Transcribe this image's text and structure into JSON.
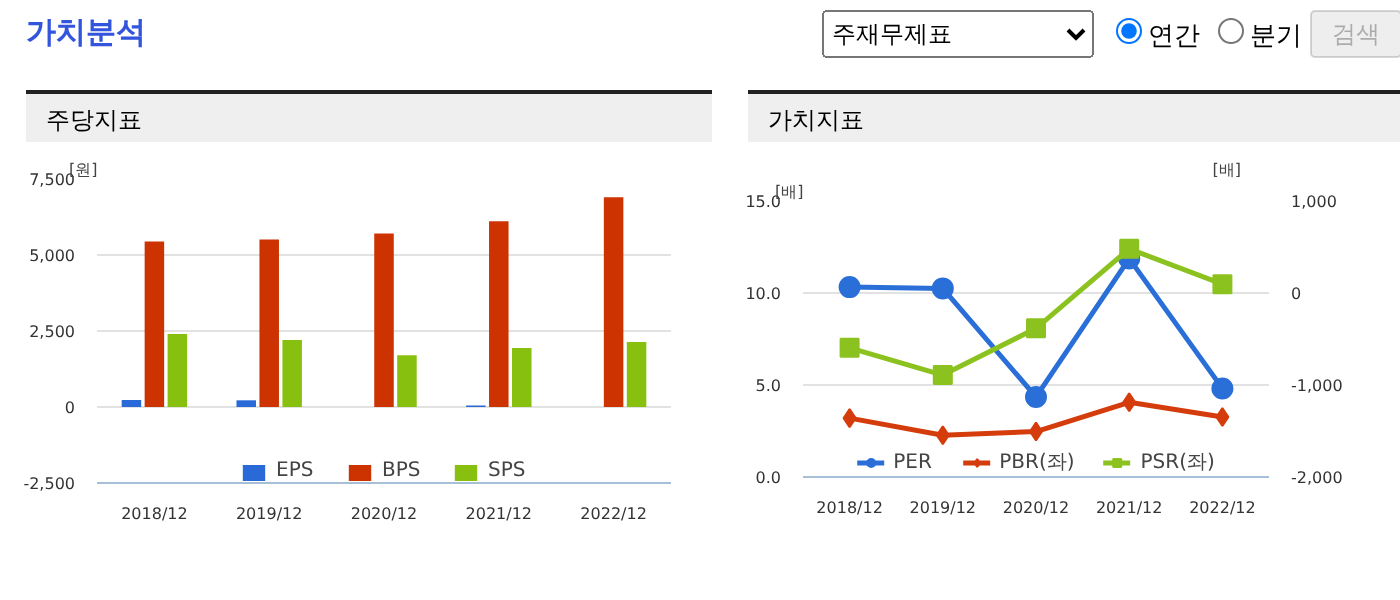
{
  "chart_data": [
    {
      "type": "other",
      "title": "가치분석",
      "annotations": [
        "주재무제표",
        "연간",
        "분기",
        "검색"
      ]
    },
    {
      "type": "bar",
      "title": "주당지표",
      "ylabel": "[원]",
      "categories": [
        "2018/12",
        "2019/12",
        "2020/12",
        "2021/12",
        "2022/12"
      ],
      "series": [
        {
          "name": "EPS",
          "color": "#2a6ad8",
          "values": [
            230,
            220,
            0,
            50,
            0
          ]
        },
        {
          "name": "BPS",
          "color": "#cc3300",
          "values": [
            5440,
            5510,
            5710,
            6110,
            6900
          ]
        },
        {
          "name": "SPS",
          "color": "#88c010",
          "values": [
            2400,
            2200,
            1700,
            1940,
            2140
          ]
        }
      ],
      "ylim": [
        -2500,
        7500
      ],
      "yticks": [
        {
          "value": -2500,
          "label": "-2,500"
        },
        {
          "value": 0,
          "label": "0"
        },
        {
          "value": 2500,
          "label": "2,500"
        },
        {
          "value": 5000,
          "label": "5,000"
        },
        {
          "value": 7500,
          "label": "7,500"
        }
      ],
      "grid": "y",
      "legend": "bottom"
    },
    {
      "type": "line",
      "title": "가치지표",
      "ylabel": "[배]",
      "y2label": "[배]",
      "categories": [
        "2018/12",
        "2019/12",
        "2020/12",
        "2021/12",
        "2022/12"
      ],
      "series": [
        {
          "name": "PER",
          "color": "#2a6fd8",
          "marker": "circle",
          "axis": "y2",
          "values": [
            64,
            50,
            -1130,
            374,
            -1037
          ]
        },
        {
          "name": "PBR(좌)",
          "color": "#d53c0c",
          "marker": "diamond",
          "values": [
            3.2,
            2.27,
            2.47,
            4.06,
            3.26
          ]
        },
        {
          "name": "PSR(좌)",
          "color": "#8cc21f",
          "marker": "square",
          "values": [
            7.02,
            5.54,
            8.08,
            12.4,
            10.48
          ]
        }
      ],
      "ylim": [
        0,
        15
      ],
      "yticks": [
        {
          "value": 0,
          "label": "0.0"
        },
        {
          "value": 5,
          "label": "5.0"
        },
        {
          "value": 10,
          "label": "10.0"
        },
        {
          "value": 15,
          "label": "15.0"
        }
      ],
      "y2lim": [
        -2000,
        1000
      ],
      "y2ticks": [
        {
          "value": -2000,
          "label": "-2,000"
        },
        {
          "value": -1000,
          "label": "-1,000"
        },
        {
          "value": 0,
          "label": "0"
        },
        {
          "value": 1000,
          "label": "1,000"
        }
      ],
      "grid": "y",
      "legend": "bottom"
    }
  ]
}
